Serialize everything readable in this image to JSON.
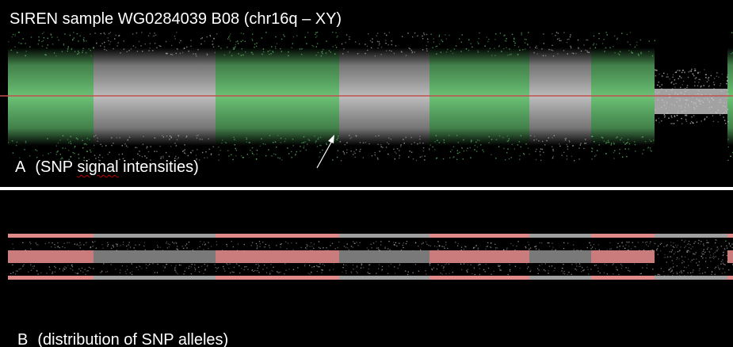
{
  "title": "SIREN sample WG0284039 B08 (chr16q – XY)",
  "panel_a": {
    "letter": "A",
    "caption_pre": "(SNP ",
    "caption_flag": "signal",
    "caption_post": " intensities)"
  },
  "panel_b": {
    "letter": "B",
    "caption_pre": "(",
    "caption_flag": "distribution",
    "caption_post": " of SNP alleles)"
  },
  "colors": {
    "green_segment": "#5fb86a",
    "grey_segment": "#a8a8a8",
    "red_line": "#c0504d",
    "pink_band": "#e08a8a",
    "background": "#000000"
  },
  "icons": {
    "arrow": "arrow-pointer-icon"
  }
}
